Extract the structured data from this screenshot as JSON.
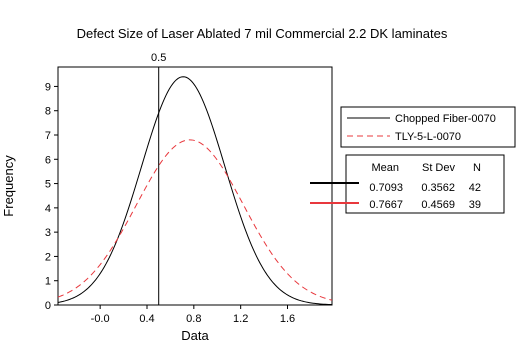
{
  "chart_data": {
    "type": "line",
    "title": "Defect Size of Laser Ablated 7 mil Commercial 2.2 DK laminates",
    "xlabel": "Data",
    "ylabel": "Frequency",
    "xlim": [
      -0.36,
      1.98
    ],
    "ylim": [
      0,
      9.8
    ],
    "x_ticks": [
      -0.0,
      0.4,
      0.8,
      1.2,
      1.6
    ],
    "x_tick_labels": [
      "-0.0",
      "0.4",
      "0.8",
      "1.2",
      "1.6"
    ],
    "y_ticks": [
      0,
      1,
      2,
      3,
      4,
      5,
      6,
      7,
      8,
      9
    ],
    "y_tick_labels": [
      "0",
      "1",
      "2",
      "3",
      "4",
      "5",
      "6",
      "7",
      "8",
      "9"
    ],
    "reference_line": {
      "x": 0.5,
      "label": "0.5"
    },
    "series": [
      {
        "name": "Chopped Fiber-0070",
        "mean": 0.7093,
        "stdev": 0.3562,
        "n": 42,
        "color": "#000000",
        "style": "solid",
        "peak": 9.4
      },
      {
        "name": "TLY-5-L-0070",
        "mean": 0.7667,
        "stdev": 0.4569,
        "n": 39,
        "color": "#e8383d",
        "style": "dashed",
        "peak": 6.8
      }
    ],
    "stats_table": {
      "headers": [
        "Mean",
        "St Dev",
        "N"
      ],
      "rows": [
        [
          "0.7093",
          "0.3562",
          "42"
        ],
        [
          "0.7667",
          "0.4569",
          "39"
        ]
      ]
    },
    "legend_position": "right",
    "grid": false
  }
}
